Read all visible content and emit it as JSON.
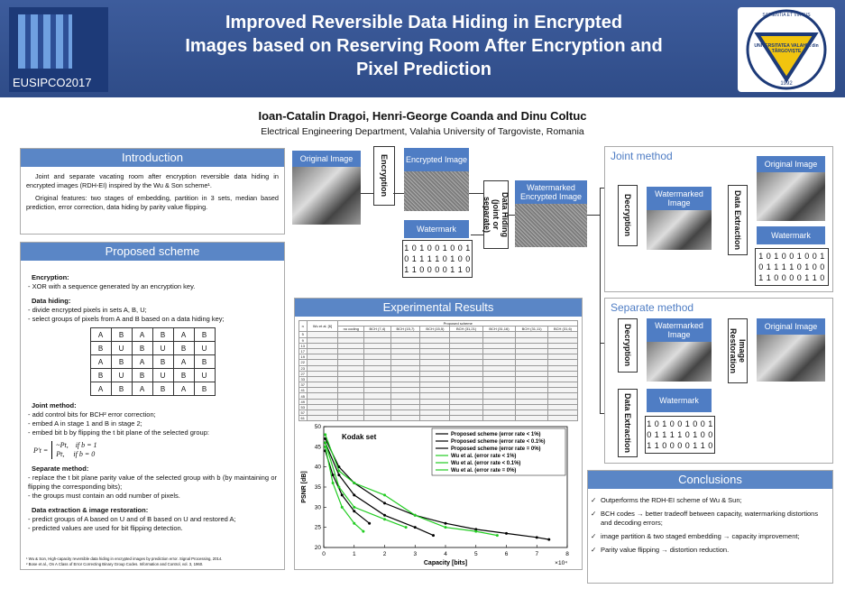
{
  "header": {
    "title_lines": [
      "Improved Reversible Data Hiding in Encrypted",
      "Images based on Reserving Room After Encryption and",
      "Pixel Prediction"
    ],
    "logo_left": "EUSIPCO2017",
    "logo_right_top": "SAPIENTIA ET VIRTUS",
    "logo_right_name": "UNIVERSITATEA VALAHIA din TÂRGOVIȘTE",
    "logo_right_year": "1992"
  },
  "authors": "Ioan-Catalin Dragoi, Henri-George Coanda and Dinu Coltuc",
  "affiliation": "Electrical Engineering Department, Valahia University of Targoviste, Romania",
  "introduction": {
    "heading": "Introduction",
    "paragraphs": [
      "Joint and separate vacating room after encryption reversible data hiding in encrypted images (RDH-EI) inspired by the Wu & Son scheme¹.",
      "Original features: two stages of embedding, partition in 3 sets, median based prediction, error correction, data hiding by parity value flipping."
    ]
  },
  "proposed": {
    "heading": "Proposed scheme",
    "blocks": [
      {
        "heading": "Encryption:",
        "lines": [
          "- XOR with a sequence generated by an encryption key."
        ]
      },
      {
        "heading": "Data hiding:",
        "lines": [
          "- divide encrypted pixels in sets A, B, U;",
          "- select groups of pixels from A and B based on a data hiding key;"
        ],
        "grid": [
          [
            "A",
            "B",
            "A",
            "B",
            "A",
            "B"
          ],
          [
            "B",
            "U",
            "B",
            "U",
            "B",
            "U"
          ],
          [
            "A",
            "B",
            "A",
            "B",
            "A",
            "B"
          ],
          [
            "B",
            "U",
            "B",
            "U",
            "B",
            "U"
          ],
          [
            "A",
            "B",
            "A",
            "B",
            "A",
            "B"
          ]
        ]
      },
      {
        "heading": "Joint method:",
        "lines": [
          "- add control bits for BCH² error correction;",
          "- embed A in stage 1 and B in stage 2;",
          "- embed bit b by flipping the t bit plane of the selected group:"
        ],
        "formula": {
          "lhs": "P′t =",
          "cases": [
            "~Pt,    if b = 1",
            "Pt,     if b = 0"
          ]
        }
      },
      {
        "heading": "Separate method:",
        "lines": [
          "- replace the t bit plane parity value of the selected group with b (by maintaining or flipping the corresponding bits);",
          "- the groups must contain an odd number of pixels."
        ]
      },
      {
        "heading": "Data extraction & image restoration:",
        "lines": [
          "- predict groups of A based on U and of B based on U and restored A;",
          "- predicted values are used for bit flipping detection."
        ]
      }
    ],
    "footnotes": [
      "¹ Wu & Son, High-capacity reversible data hiding in encrypted images by prediction error. Signal Processing, 2014.",
      "² Bose et al., On A Class of Error Correcting Binary Group Codes. Information and Control, vol. 3, 1960."
    ]
  },
  "flow": {
    "original": "Original Image",
    "encryption": "Encryption",
    "encrypted": "Encrypted Image",
    "data_hiding": "Data Hiding (joint or separate)",
    "watermarked_encrypted": "Watermarked Encrypted Image",
    "watermark": "Watermark",
    "bits": [
      "1 0 1 0 0 1 0 0 1",
      "0 1 1 1 1 0 1 0 0",
      "1 1 0 0 0 0 1 1 0"
    ]
  },
  "joint": {
    "heading": "Joint method",
    "decryption": "Decryption",
    "watermarked": "Watermarked Image",
    "extraction": "Data Extraction",
    "original": "Original Image",
    "watermark": "Watermark",
    "bits": [
      "1 0 1 0 0 1 0 0 1",
      "0 1 1 1 1 0 1 0 0",
      "1 1 0 0 0 0 1 1 0"
    ]
  },
  "separate": {
    "heading": "Separate method",
    "decryption": "Decryption",
    "watermarked": "Watermarked Image",
    "restoration": "Image Restoration",
    "original": "Original Image",
    "extraction": "Data Extraction",
    "watermark": "Watermark",
    "bits": [
      "1 0 1 0 0 1 0 0 1",
      "0 1 1 1 1 0 1 0 0",
      "1 1 0 0 0 0 1 1 0"
    ]
  },
  "experimental": {
    "heading": "Experimental Results",
    "table": {
      "col_n": "n",
      "col_wu": "Wu et al. [6]",
      "col_proposed": "Proposed scheme",
      "subcols": [
        "no coding",
        "BCH (7,4)",
        "BCH (15,7)",
        "BCH (15,5)",
        "BCH (31,21)",
        "BCH (31,16)",
        "BCH (31,11)",
        "BCH (31,6)"
      ],
      "n": [
        "5",
        "9",
        "13",
        "17",
        "19",
        "22",
        "23",
        "27",
        "33",
        "37",
        "41",
        "45",
        "49",
        "53",
        "57",
        "61"
      ]
    }
  },
  "conclusions": {
    "heading": "Conclusions",
    "items": [
      "Outperforms the RDH-EI scheme of Wu & Sun;",
      "BCH codes → better tradeoff between capacity, watermarking distortions and decoding errors;",
      "image partition & two staged embedding → capacity improvement;",
      "Parity value flipping → distortion reduction."
    ]
  },
  "chart_data": {
    "type": "line",
    "annotation": "Kodak set",
    "x_label": "Capacity [bits]",
    "y_label": "PSNR [dB]",
    "x_multiplier": "×10⁴",
    "xlim": [
      0,
      8
    ],
    "ylim": [
      20,
      50
    ],
    "xticks": [
      0,
      1,
      2,
      3,
      4,
      5,
      6,
      7,
      8
    ],
    "yticks": [
      20,
      25,
      30,
      35,
      40,
      45,
      50
    ],
    "legend": "upper right",
    "series": [
      {
        "name": "Proposed scheme (error rate < 1%)",
        "color": "#000000",
        "x": [
          0.05,
          0.5,
          1,
          2,
          3,
          4,
          5,
          6,
          7,
          7.4
        ],
        "values": [
          47,
          40,
          36,
          31,
          28,
          26,
          24.5,
          23.5,
          22.5,
          22
        ]
      },
      {
        "name": "Proposed scheme (error rate < 0.1%)",
        "color": "#000000",
        "x": [
          0.05,
          0.5,
          1,
          2,
          3,
          3.6
        ],
        "values": [
          46,
          38,
          33,
          28,
          25,
          23
        ]
      },
      {
        "name": "Proposed scheme (error rate = 0%)",
        "color": "#000000",
        "x": [
          0.05,
          0.3,
          0.6,
          1,
          1.5
        ],
        "values": [
          44,
          38,
          33,
          29,
          26
        ]
      },
      {
        "name": "Wu et al. (error rate < 1%)",
        "color": "#22cc22",
        "x": [
          0.05,
          0.5,
          1,
          2,
          3,
          4,
          5,
          5.7
        ],
        "values": [
          48,
          39,
          36,
          33,
          28,
          25,
          24,
          23
        ]
      },
      {
        "name": "Wu et al. (error rate < 0.1%)",
        "color": "#22cc22",
        "x": [
          0.05,
          0.5,
          1,
          2,
          2.7
        ],
        "values": [
          46,
          35,
          30,
          27,
          25
        ]
      },
      {
        "name": "Wu et al. (error rate = 0%)",
        "color": "#22cc22",
        "x": [
          0.05,
          0.3,
          0.6,
          1,
          1.3
        ],
        "values": [
          45,
          36,
          30,
          26,
          24
        ]
      }
    ]
  }
}
